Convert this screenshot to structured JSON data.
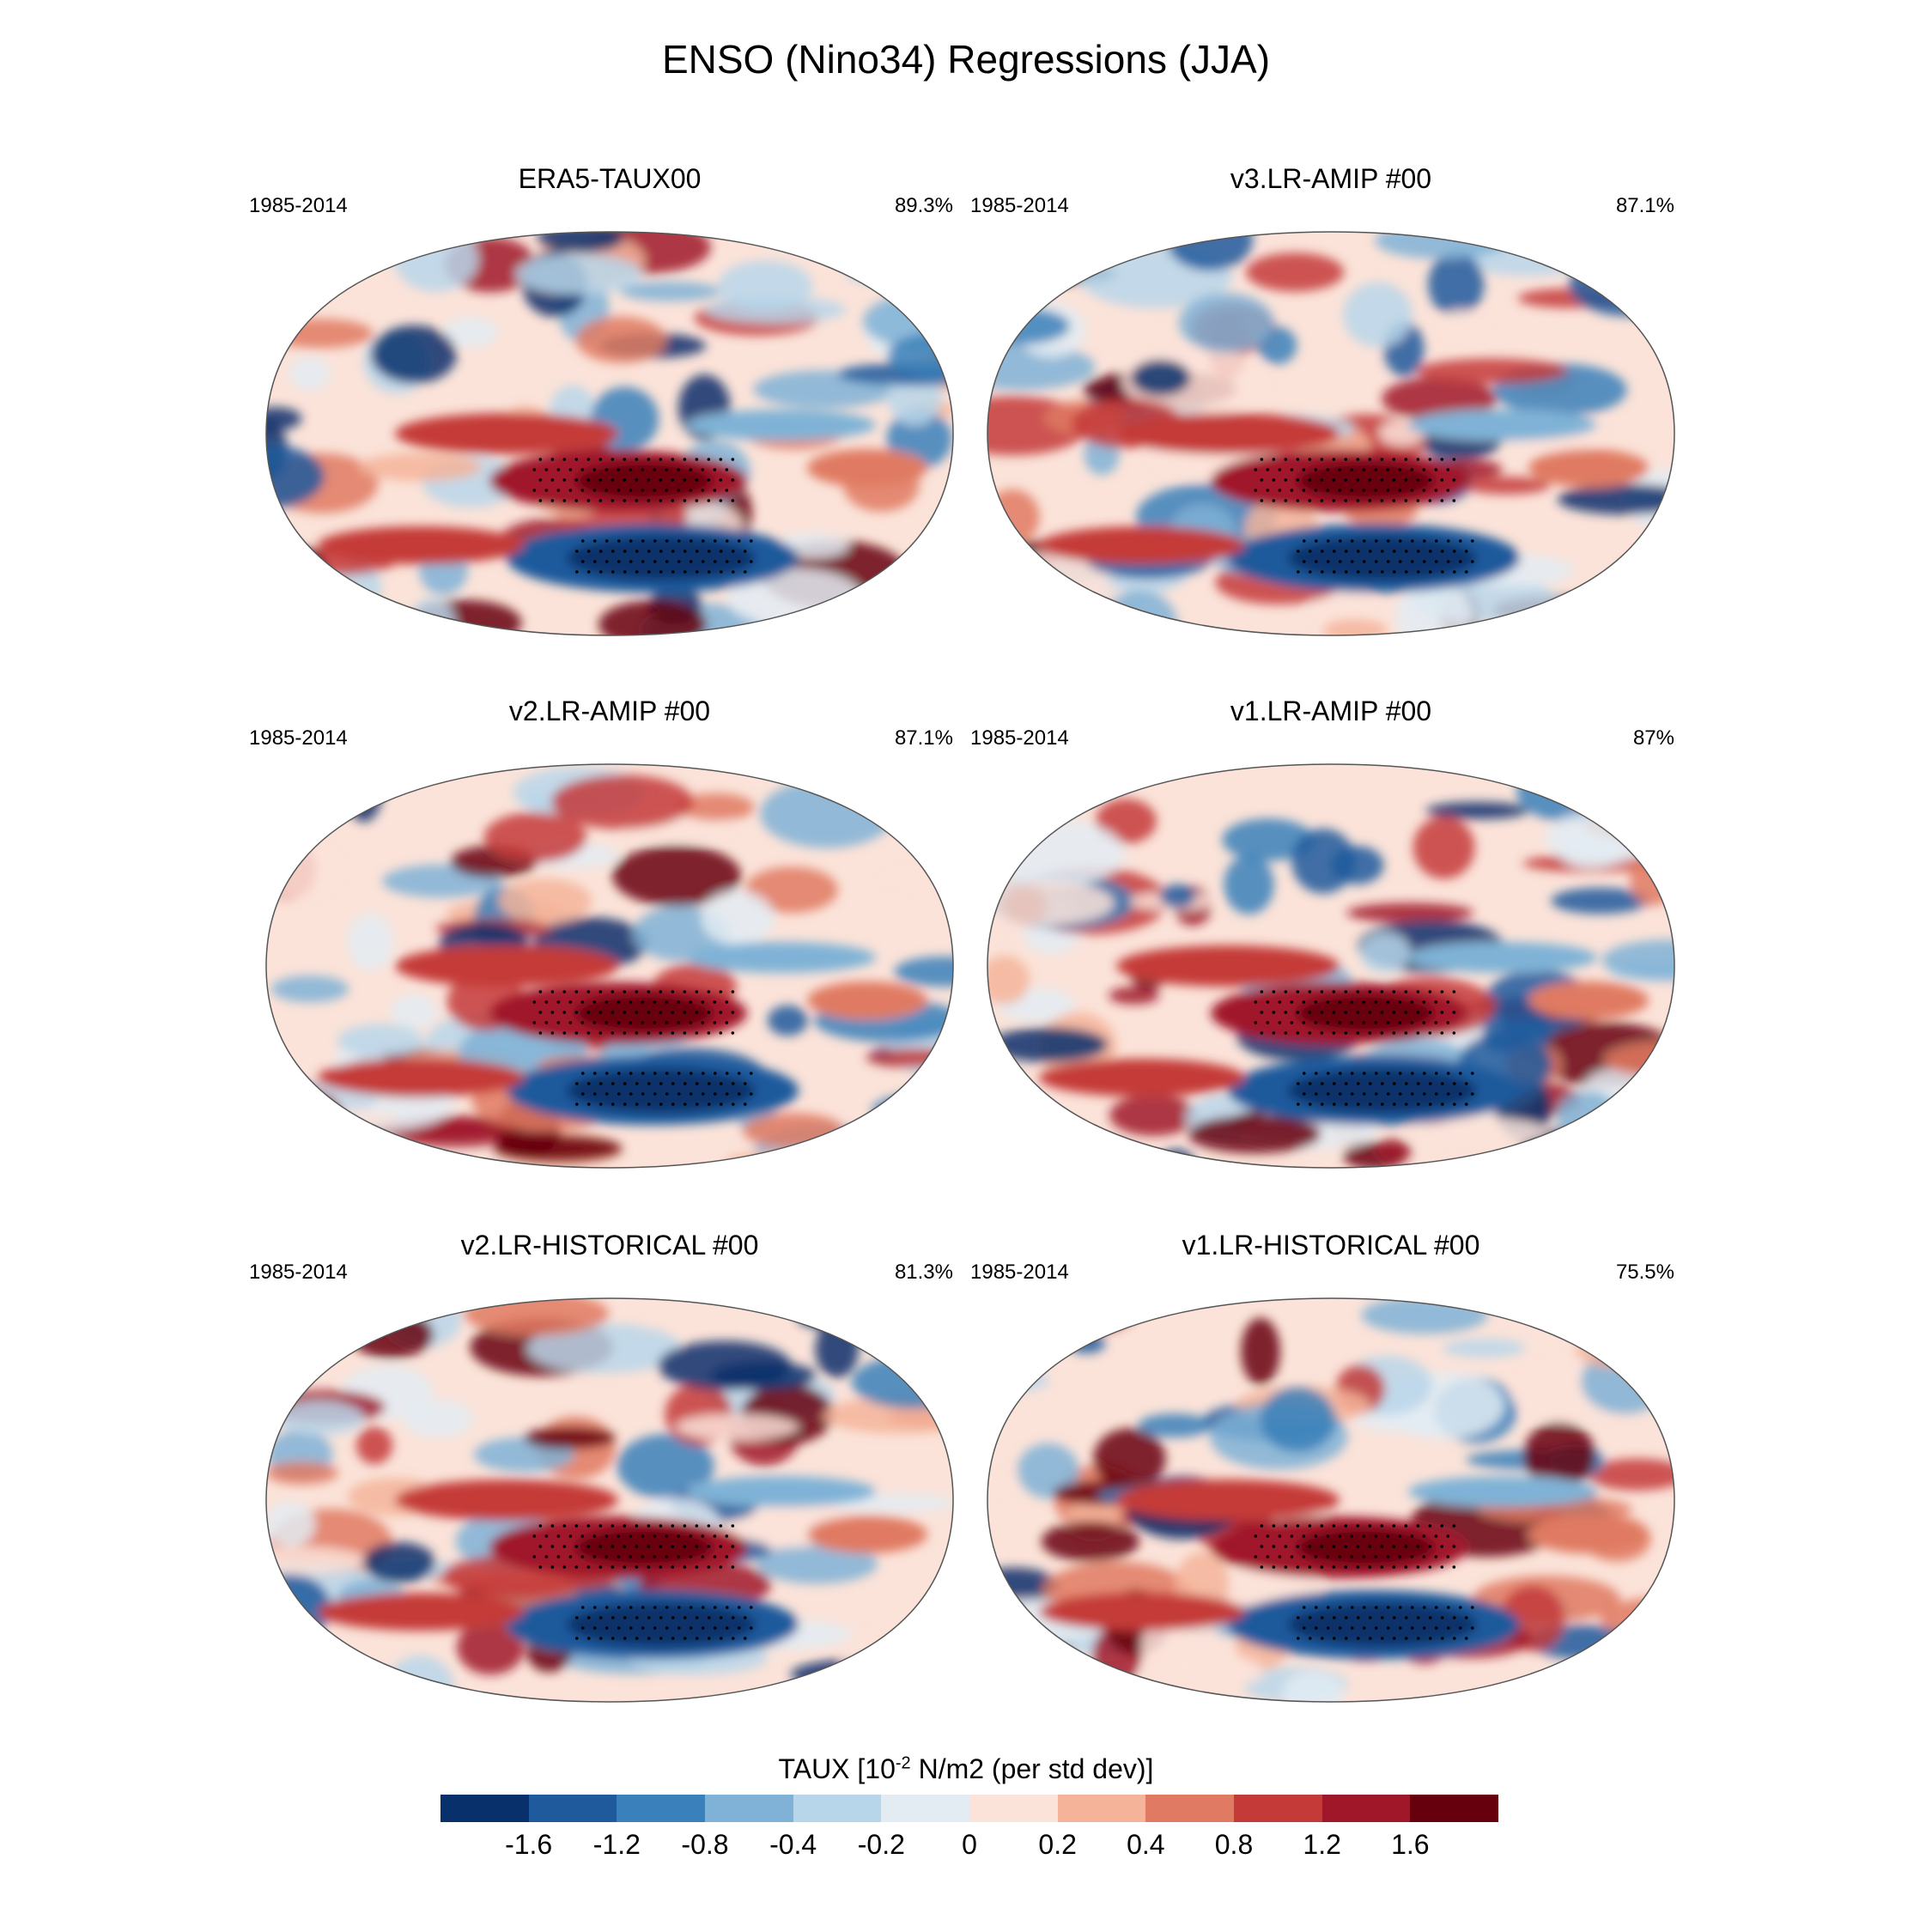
{
  "title": "ENSO (Nino34) Regressions (JJA)",
  "chart_data": {
    "type": "heatmap",
    "title": "ENSO (Nino34) Regressions (JJA)",
    "variable": "TAUX",
    "colorbar_label_prefix": "TAUX [10",
    "colorbar_label_exponent": "-2",
    "colorbar_label_suffix": " N/m2 (per std dev)]",
    "colorbar_levels": [
      "-1.6",
      "-1.2",
      "-0.8",
      "-0.4",
      "-0.2",
      "0",
      "0.2",
      "0.4",
      "0.8",
      "1.2",
      "1.6"
    ],
    "colorbar_colors": [
      "#08306b",
      "#1f5a9c",
      "#3a80ba",
      "#7fb2d6",
      "#b8d6ea",
      "#e3ecf3",
      "#fbe3d9",
      "#f5b49a",
      "#e07a62",
      "#c43a39",
      "#a0172a",
      "#67000d"
    ],
    "panels": [
      {
        "title": "ERA5-TAUX00",
        "period": "1985-2014",
        "pattern_corr": "89.3%"
      },
      {
        "title": "v3.LR-AMIP  #00",
        "period": "1985-2014",
        "pattern_corr": "87.1%"
      },
      {
        "title": "v2.LR-AMIP  #00",
        "period": "1985-2014",
        "pattern_corr": "87.1%"
      },
      {
        "title": "v1.LR-AMIP  #00",
        "period": "1985-2014",
        "pattern_corr": "87%"
      },
      {
        "title": "v2.LR-HISTORICAL  #00",
        "period": "1985-2014",
        "pattern_corr": "81.3%"
      },
      {
        "title": "v1.LR-HISTORICAL  #00",
        "period": "1985-2014",
        "pattern_corr": "75.5%"
      }
    ]
  }
}
